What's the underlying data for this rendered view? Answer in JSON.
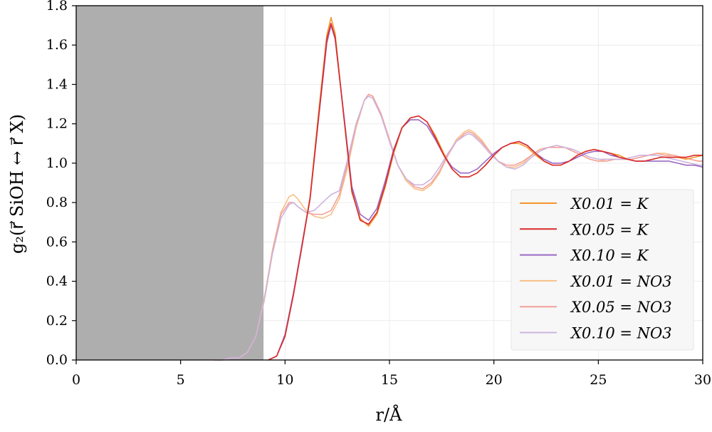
{
  "chart_data": {
    "type": "line",
    "title": "",
    "xlabel": "r/Å",
    "ylabel": "g₂(r⃗ SiOH ↔ r⃗ X)",
    "xlim": [
      0,
      30
    ],
    "ylim": [
      0,
      1.8
    ],
    "grid": true,
    "legend_position": "lower-right",
    "xticks": [
      "0",
      "5",
      "10",
      "15",
      "20",
      "25",
      "30"
    ],
    "yticks": [
      "0.0",
      "0.2",
      "0.4",
      "0.6",
      "0.8",
      "1.0",
      "1.2",
      "1.4",
      "1.6",
      "1.8"
    ],
    "shaded_region": {
      "x_start": 0,
      "x_end": 8.97,
      "color": "#aeaeae"
    },
    "series": [
      {
        "name": "X0.01 = K",
        "color": "#f5962d",
        "x": [
          9.2,
          9.6,
          10.0,
          10.4,
          10.8,
          11.2,
          11.6,
          12.0,
          12.2,
          12.4,
          12.8,
          13.2,
          13.6,
          14.0,
          14.4,
          14.8,
          15.2,
          15.6,
          16.0,
          16.4,
          16.8,
          17.2,
          17.6,
          18.0,
          18.4,
          18.8,
          19.2,
          19.6,
          20.0,
          20.4,
          20.8,
          21.2,
          21.6,
          22.0,
          22.4,
          22.8,
          23.2,
          23.6,
          24.0,
          24.4,
          24.8,
          25.2,
          25.6,
          26.0,
          26.4,
          26.8,
          27.2,
          27.6,
          28.0,
          28.4,
          28.8,
          29.2,
          29.6,
          30.0
        ],
        "y": [
          0.0,
          0.02,
          0.12,
          0.33,
          0.58,
          0.83,
          1.25,
          1.65,
          1.74,
          1.66,
          1.25,
          0.85,
          0.72,
          0.68,
          0.74,
          0.88,
          1.05,
          1.18,
          1.23,
          1.24,
          1.21,
          1.14,
          1.05,
          0.97,
          0.93,
          0.93,
          0.95,
          0.99,
          1.04,
          1.08,
          1.1,
          1.1,
          1.08,
          1.04,
          1.01,
          0.99,
          0.99,
          1.01,
          1.04,
          1.06,
          1.07,
          1.06,
          1.05,
          1.04,
          1.02,
          1.01,
          1.01,
          1.02,
          1.03,
          1.03,
          1.03,
          1.02,
          1.03,
          1.04
        ]
      },
      {
        "name": "X0.05 = K",
        "color": "#d92b2b",
        "x": [
          9.2,
          9.6,
          10.0,
          10.4,
          10.8,
          11.2,
          11.6,
          12.0,
          12.2,
          12.4,
          12.8,
          13.2,
          13.6,
          14.0,
          14.4,
          14.8,
          15.2,
          15.6,
          16.0,
          16.4,
          16.8,
          17.2,
          17.6,
          18.0,
          18.4,
          18.8,
          19.2,
          19.6,
          20.0,
          20.4,
          20.8,
          21.2,
          21.6,
          22.0,
          22.4,
          22.8,
          23.2,
          23.6,
          24.0,
          24.4,
          24.8,
          25.2,
          25.6,
          26.0,
          26.4,
          26.8,
          27.2,
          27.6,
          28.0,
          28.4,
          28.8,
          29.2,
          29.6,
          30.0
        ],
        "y": [
          0.0,
          0.02,
          0.12,
          0.33,
          0.57,
          0.82,
          1.23,
          1.63,
          1.71,
          1.64,
          1.25,
          0.86,
          0.71,
          0.69,
          0.75,
          0.89,
          1.06,
          1.18,
          1.23,
          1.24,
          1.21,
          1.13,
          1.04,
          0.97,
          0.93,
          0.93,
          0.95,
          0.99,
          1.04,
          1.08,
          1.1,
          1.11,
          1.09,
          1.05,
          1.01,
          0.99,
          0.99,
          1.01,
          1.04,
          1.06,
          1.07,
          1.06,
          1.05,
          1.03,
          1.02,
          1.01,
          1.01,
          1.02,
          1.03,
          1.03,
          1.03,
          1.03,
          1.04,
          1.04
        ]
      },
      {
        "name": "X0.10 = K",
        "color": "#9b6ac4",
        "x": [
          9.2,
          9.6,
          10.0,
          10.4,
          10.8,
          11.2,
          11.6,
          12.0,
          12.2,
          12.4,
          12.8,
          13.2,
          13.6,
          14.0,
          14.4,
          14.8,
          15.2,
          15.6,
          16.0,
          16.4,
          16.8,
          17.2,
          17.6,
          18.0,
          18.4,
          18.8,
          19.2,
          19.6,
          20.0,
          20.4,
          20.8,
          21.2,
          21.6,
          22.0,
          22.4,
          22.8,
          23.2,
          23.6,
          24.0,
          24.4,
          24.8,
          25.2,
          25.6,
          26.0,
          26.4,
          26.8,
          27.2,
          27.6,
          28.0,
          28.4,
          28.8,
          29.2,
          29.6,
          30.0
        ],
        "y": [
          0.0,
          0.02,
          0.13,
          0.34,
          0.58,
          0.82,
          1.22,
          1.61,
          1.7,
          1.63,
          1.26,
          0.88,
          0.74,
          0.71,
          0.77,
          0.91,
          1.07,
          1.18,
          1.22,
          1.22,
          1.19,
          1.12,
          1.04,
          0.98,
          0.95,
          0.95,
          0.97,
          1.01,
          1.05,
          1.08,
          1.1,
          1.11,
          1.09,
          1.05,
          1.02,
          1.0,
          1.0,
          1.01,
          1.03,
          1.05,
          1.06,
          1.06,
          1.04,
          1.03,
          1.02,
          1.01,
          1.01,
          1.01,
          1.01,
          1.01,
          1.0,
          0.99,
          0.99,
          0.98
        ]
      },
      {
        "name": "X0.01 = NO3",
        "color": "#f8bf86",
        "x": [
          6.6,
          7.0,
          7.4,
          7.8,
          8.2,
          8.6,
          9.0,
          9.4,
          9.8,
          10.2,
          10.4,
          10.6,
          11.0,
          11.4,
          11.8,
          12.2,
          12.6,
          13.0,
          13.4,
          13.8,
          14.0,
          14.2,
          14.6,
          15.0,
          15.4,
          15.8,
          16.2,
          16.6,
          17.0,
          17.4,
          17.8,
          18.2,
          18.6,
          18.8,
          19.0,
          19.4,
          19.8,
          20.2,
          20.6,
          21.0,
          21.4,
          21.8,
          22.2,
          22.6,
          23.0,
          23.4,
          23.8,
          24.2,
          24.6,
          25.0,
          25.4,
          25.8,
          26.2,
          26.6,
          27.0,
          27.4,
          27.8,
          28.2,
          28.6,
          29.0,
          29.4,
          29.8,
          30.0
        ],
        "y": [
          0.0,
          0.0,
          0.01,
          0.01,
          0.04,
          0.12,
          0.31,
          0.56,
          0.75,
          0.83,
          0.84,
          0.82,
          0.76,
          0.73,
          0.72,
          0.74,
          0.82,
          0.98,
          1.18,
          1.32,
          1.35,
          1.34,
          1.25,
          1.12,
          0.99,
          0.91,
          0.87,
          0.86,
          0.89,
          0.95,
          1.04,
          1.12,
          1.16,
          1.17,
          1.16,
          1.12,
          1.06,
          1.01,
          0.98,
          0.98,
          1.0,
          1.04,
          1.07,
          1.08,
          1.09,
          1.08,
          1.06,
          1.04,
          1.02,
          1.01,
          1.02,
          1.02,
          1.02,
          1.02,
          1.03,
          1.04,
          1.05,
          1.05,
          1.04,
          1.03,
          1.02,
          1.01,
          1.01
        ]
      },
      {
        "name": "X0.05 = NO3",
        "color": "#f4a09a",
        "x": [
          6.6,
          7.0,
          7.4,
          7.8,
          8.2,
          8.6,
          9.0,
          9.4,
          9.8,
          10.2,
          10.4,
          10.6,
          11.0,
          11.4,
          11.8,
          12.2,
          12.6,
          13.0,
          13.4,
          13.8,
          14.0,
          14.2,
          14.6,
          15.0,
          15.4,
          15.8,
          16.2,
          16.6,
          17.0,
          17.4,
          17.8,
          18.2,
          18.6,
          18.8,
          19.0,
          19.4,
          19.8,
          20.2,
          20.6,
          21.0,
          21.4,
          21.8,
          22.2,
          22.6,
          23.0,
          23.4,
          23.8,
          24.2,
          24.6,
          25.0,
          25.4,
          25.8,
          26.2,
          26.6,
          27.0,
          27.4,
          27.8,
          28.2,
          28.6,
          29.0,
          29.4,
          29.8,
          30.0
        ],
        "y": [
          0.0,
          0.0,
          0.01,
          0.01,
          0.04,
          0.12,
          0.3,
          0.55,
          0.74,
          0.8,
          0.8,
          0.78,
          0.75,
          0.74,
          0.74,
          0.76,
          0.84,
          1.0,
          1.19,
          1.32,
          1.35,
          1.34,
          1.25,
          1.12,
          0.99,
          0.92,
          0.88,
          0.87,
          0.9,
          0.96,
          1.04,
          1.11,
          1.15,
          1.16,
          1.15,
          1.11,
          1.06,
          1.01,
          0.99,
          0.99,
          1.01,
          1.04,
          1.07,
          1.08,
          1.08,
          1.08,
          1.06,
          1.04,
          1.02,
          1.01,
          1.01,
          1.02,
          1.02,
          1.02,
          1.03,
          1.04,
          1.05,
          1.04,
          1.04,
          1.03,
          1.02,
          1.01,
          1.01
        ]
      },
      {
        "name": "X0.10 = NO3",
        "color": "#cdb4de",
        "x": [
          6.6,
          7.0,
          7.4,
          7.8,
          8.2,
          8.6,
          9.0,
          9.4,
          9.8,
          10.2,
          10.4,
          10.6,
          11.0,
          11.4,
          11.8,
          12.2,
          12.6,
          13.0,
          13.4,
          13.8,
          14.0,
          14.2,
          14.6,
          15.0,
          15.4,
          15.8,
          16.2,
          16.6,
          17.0,
          17.4,
          17.8,
          18.2,
          18.6,
          18.8,
          19.0,
          19.4,
          19.8,
          20.2,
          20.6,
          21.0,
          21.4,
          21.8,
          22.2,
          22.6,
          23.0,
          23.4,
          23.8,
          24.2,
          24.6,
          25.0,
          25.4,
          25.8,
          26.2,
          26.6,
          27.0,
          27.4,
          27.8,
          28.2,
          28.6,
          29.0,
          29.4,
          29.8,
          30.0
        ],
        "y": [
          0.0,
          0.0,
          0.01,
          0.01,
          0.04,
          0.12,
          0.3,
          0.54,
          0.72,
          0.79,
          0.8,
          0.78,
          0.75,
          0.76,
          0.8,
          0.84,
          0.86,
          1.02,
          1.2,
          1.32,
          1.34,
          1.33,
          1.24,
          1.11,
          0.99,
          0.92,
          0.89,
          0.89,
          0.92,
          0.98,
          1.05,
          1.11,
          1.14,
          1.15,
          1.14,
          1.1,
          1.05,
          1.01,
          0.98,
          0.97,
          0.99,
          1.03,
          1.06,
          1.08,
          1.09,
          1.08,
          1.07,
          1.05,
          1.03,
          1.02,
          1.02,
          1.02,
          1.02,
          1.03,
          1.04,
          1.04,
          1.04,
          1.03,
          1.02,
          1.01,
          1.0,
          0.99,
          0.99
        ]
      }
    ]
  }
}
